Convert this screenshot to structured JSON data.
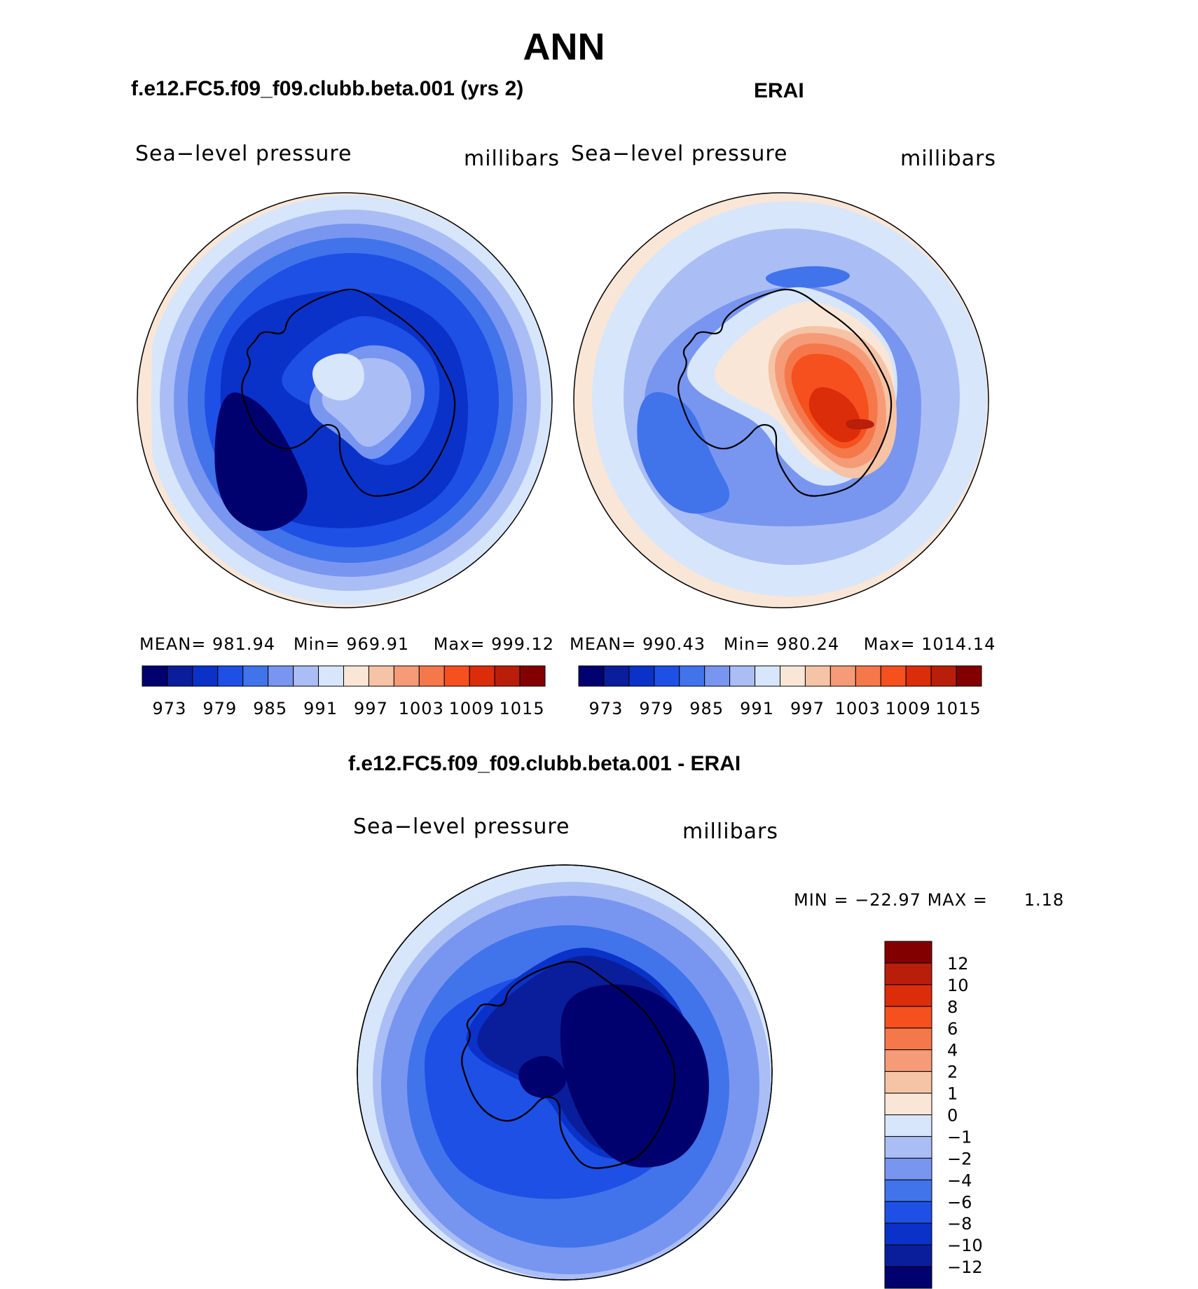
{
  "main_title": "ANN",
  "panels": [
    {
      "title": "f.e12.FC5.f09_f09.clubb.beta.001 (yrs 2)",
      "variable": "Sea−level pressure",
      "units": "millibars",
      "stats": {
        "mean_label": "MEAN=",
        "mean": "981.94",
        "min_label": "Min=",
        "min": "969.91",
        "max_label": "Max=",
        "max": "999.12"
      }
    },
    {
      "title": "ERAI",
      "variable": "Sea−level pressure",
      "units": "millibars",
      "stats": {
        "mean_label": "MEAN=",
        "mean": "990.43",
        "min_label": "Min=",
        "min": "980.24",
        "max_label": "Max=",
        "max": "1014.14"
      }
    },
    {
      "title": "f.e12.FC5.f09_f09.clubb.beta.001 - ERAI",
      "variable": "Sea−level pressure",
      "units": "millibars",
      "stats": {
        "min_label": "MIN =",
        "min": "−22.97",
        "max_label": "MAX =",
        "max": "1.18"
      }
    }
  ],
  "colors": {
    "scale": [
      "#00006e",
      "#0a1e9b",
      "#0a32c8",
      "#1e50e6",
      "#4173eb",
      "#7896f0",
      "#aabef5",
      "#d7e6fa",
      "#fae6d7",
      "#f5c3a5",
      "#f59b78",
      "#f5784b",
      "#f5501e",
      "#dc2d0a",
      "#b91e0a",
      "#820000"
    ]
  },
  "chart_data": [
    {
      "type": "heatmap",
      "projection": "south-polar-stereographic",
      "title": "f.e12.FC5.f09_f09.clubb.beta.001 (yrs 2)",
      "variable": "Sea−level pressure",
      "units": "millibars",
      "colorbar_ticks": [
        "973",
        "979",
        "985",
        "991",
        "997",
        "1003",
        "1009",
        "1015"
      ],
      "mean": 981.94,
      "min": 969.91,
      "max": 999.12
    },
    {
      "type": "heatmap",
      "projection": "south-polar-stereographic",
      "title": "ERAI",
      "variable": "Sea−level pressure",
      "units": "millibars",
      "colorbar_ticks": [
        "973",
        "979",
        "985",
        "991",
        "997",
        "1003",
        "1009",
        "1015"
      ],
      "mean": 990.43,
      "min": 980.24,
      "max": 1014.14
    },
    {
      "type": "heatmap",
      "projection": "south-polar-stereographic",
      "title": "f.e12.FC5.f09_f09.clubb.beta.001 - ERAI",
      "variable": "Sea−level pressure",
      "units": "millibars",
      "colorbar_ticks": [
        "12",
        "10",
        "8",
        "6",
        "4",
        "2",
        "1",
        "0",
        "−1",
        "−2",
        "−4",
        "−6",
        "−8",
        "−10",
        "−12"
      ],
      "min": -22.97,
      "max": 1.18
    }
  ]
}
